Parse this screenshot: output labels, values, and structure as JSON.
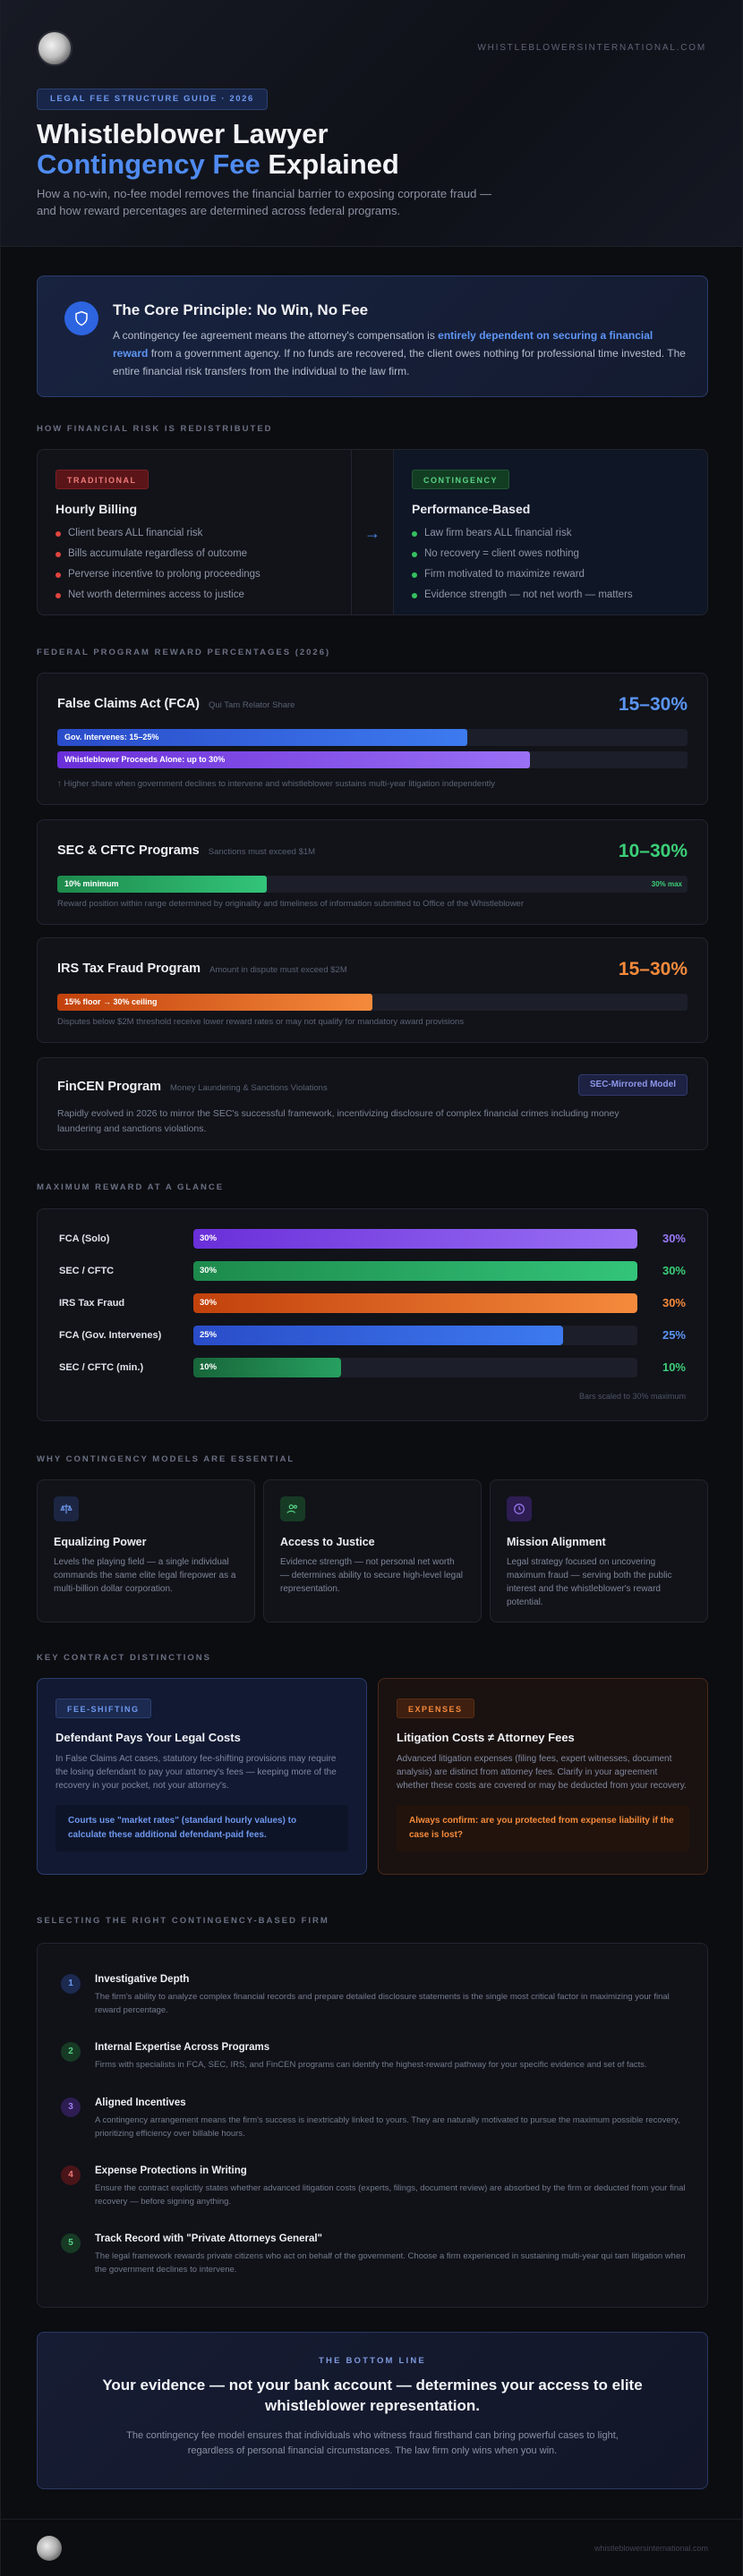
{
  "header": {
    "site": "WHISTLEBLOWERSINTERNATIONAL.COM",
    "tag": "LEGAL FEE STRUCTURE GUIDE · 2026",
    "title_line1": "Whistleblower Lawyer",
    "title_line2_blue": "Contingency Fee",
    "title_line2_white": " Explained",
    "subtitle": "How a no-win, no-fee model removes the financial barrier to exposing corporate fraud — and how reward percentages are determined across federal programs."
  },
  "core": {
    "title": "The Core Principle: No Win, No Fee",
    "text_a": "A contingency fee agreement means the attorney's compensation is ",
    "text_hl": "entirely dependent on securing a financial reward",
    "text_b": " from a government agency. If no funds are recovered, the client owes nothing for professional time invested. The entire financial risk transfers from the individual to the law firm."
  },
  "risk": {
    "label": "HOW FINANCIAL RISK IS REDISTRIBUTED",
    "left": {
      "pill": "TRADITIONAL",
      "title": "Hourly Billing",
      "items": [
        "Client bears ALL financial risk",
        "Bills accumulate regardless of outcome",
        "Perverse incentive to prolong proceedings",
        "Net worth determines access to justice"
      ]
    },
    "arrow": "→",
    "right": {
      "pill": "CONTINGENCY",
      "title": "Performance-Based",
      "items": [
        "Law firm bears ALL financial risk",
        "No recovery = client owes nothing",
        "Firm motivated to maximize reward",
        "Evidence strength — not net worth — matters"
      ]
    }
  },
  "programs": {
    "label": "FEDERAL PROGRAM REWARD PERCENTAGES (2026)",
    "fca": {
      "title": "False Claims Act (FCA)",
      "note": "Qui Tam Relator Share",
      "pct": "15–30%",
      "bar1": "Gov. Intervenes: 15–25%",
      "bar2": "Whistleblower Proceeds Alone: up to 30%",
      "foot": "↑ Higher share when government declines to intervene and whistleblower sustains multi-year litigation independently",
      "bar1_level": 0.65,
      "bar2_level": 0.75
    },
    "sec": {
      "title": "SEC & CFTC Programs",
      "note": "Sanctions must exceed $1M",
      "pct": "10–30%",
      "bar": "10% minimum",
      "bar_end": "30% max",
      "foot": "Reward position within range determined by originality and timeliness of information submitted to Office of the Whistleblower",
      "bar_level": 0.333
    },
    "irs": {
      "title": "IRS Tax Fraud Program",
      "note": "Amount in dispute must exceed $2M",
      "pct": "15–30%",
      "bar": "15% floor → 30% ceiling",
      "foot": "Disputes below $2M threshold receive lower reward rates or may not qualify for mandatory award provisions",
      "bar_level": 0.5
    },
    "fincen": {
      "title": "FinCEN Program",
      "note": "Money Laundering & Sanctions Violations",
      "badge": "SEC-Mirrored Model",
      "text": "Rapidly evolved in 2026 to mirror the SEC's successful framework, incentivizing disclosure of complex financial crimes including money laundering and sanctions violations."
    }
  },
  "glance": {
    "label": "MAXIMUM REWARD AT A GLANCE",
    "rows": [
      {
        "name": "FCA (Solo)",
        "value": "30%",
        "level": 1.0
      },
      {
        "name": "SEC / CFTC",
        "value": "30%",
        "level": 1.0
      },
      {
        "name": "IRS Tax Fraud",
        "value": "30%",
        "level": 1.0
      },
      {
        "name": "FCA (Gov. Intervenes)",
        "value": "25%",
        "level": 0.833
      },
      {
        "name": "SEC / CFTC (min.)",
        "value": "10%",
        "level": 0.333
      }
    ],
    "foot": "Bars scaled to 30% maximum"
  },
  "why": {
    "label": "WHY CONTINGENCY MODELS ARE ESSENTIAL",
    "cards": [
      {
        "icon": "scale-icon",
        "title": "Equalizing Power",
        "text": "Levels the playing field — a single individual commands the same elite legal firepower as a multi-billion dollar corporation."
      },
      {
        "icon": "people-icon",
        "title": "Access to Justice",
        "text": "Evidence strength — not personal net worth — determines ability to secure high-level legal representation."
      },
      {
        "icon": "clock-icon",
        "title": "Mission Alignment",
        "text": "Legal strategy focused on uncovering maximum fraud — serving both the public interest and the whistleblower's reward potential."
      }
    ]
  },
  "contract": {
    "label": "KEY CONTRACT DISTINCTIONS",
    "left": {
      "pill": "FEE-SHIFTING",
      "title": "Defendant Pays Your Legal Costs",
      "text": "In False Claims Act cases, statutory fee-shifting provisions may require the losing defendant to pay your attorney's fees — keeping more of the recovery in your pocket, not your attorney's.",
      "callout": "Courts use \"market rates\" (standard hourly values) to calculate these additional defendant-paid fees."
    },
    "right": {
      "pill": "EXPENSES",
      "title": "Litigation Costs ≠ Attorney Fees",
      "text": "Advanced litigation expenses (filing fees, expert witnesses, document analysis) are distinct from attorney fees. Clarify in your agreement whether these costs are covered or may be deducted from your recovery.",
      "callout": "Always confirm: are you protected from expense liability if the case is lost?"
    }
  },
  "select": {
    "label": "SELECTING THE RIGHT CONTINGENCY-BASED FIRM",
    "steps": [
      {
        "n": "1",
        "title": "Investigative Depth",
        "text": "The firm's ability to analyze complex financial records and prepare detailed disclosure statements is the single most critical factor in maximizing your final reward percentage."
      },
      {
        "n": "2",
        "title": "Internal Expertise Across Programs",
        "text": "Firms with specialists in FCA, SEC, IRS, and FinCEN programs can identify the highest-reward pathway for your specific evidence and set of facts."
      },
      {
        "n": "3",
        "title": "Aligned Incentives",
        "text": "A contingency arrangement means the firm's success is inextricably linked to yours. They are naturally motivated to pursue the maximum possible recovery, prioritizing efficiency over billable hours."
      },
      {
        "n": "4",
        "title": "Expense Protections in Writing",
        "text": "Ensure the contract explicitly states whether advanced litigation costs (experts, filings, document review) are absorbed by the firm or deducted from your final recovery — before signing anything."
      },
      {
        "n": "5",
        "title": "Track Record with \"Private Attorneys General\"",
        "text": "The legal framework rewards private citizens who act on behalf of the government. Choose a firm experienced in sustaining multi-year qui tam litigation when the government declines to intervene."
      }
    ]
  },
  "bottom": {
    "label": "THE BOTTOM LINE",
    "headline": "Your evidence — not your bank account — determines your access to elite whistleblower representation.",
    "text": "The contingency fee model ensures that individuals who witness fraud firsthand can bring powerful cases to light, regardless of personal financial circumstances. The law firm only wins when you win."
  },
  "footer": {
    "site": "whistleblowersinternational.com"
  },
  "colors": {
    "accent": "#4f8bf0",
    "green": "#35c060",
    "orange": "#f08030",
    "red": "#e0443f",
    "purple": "#8a5cf0"
  }
}
